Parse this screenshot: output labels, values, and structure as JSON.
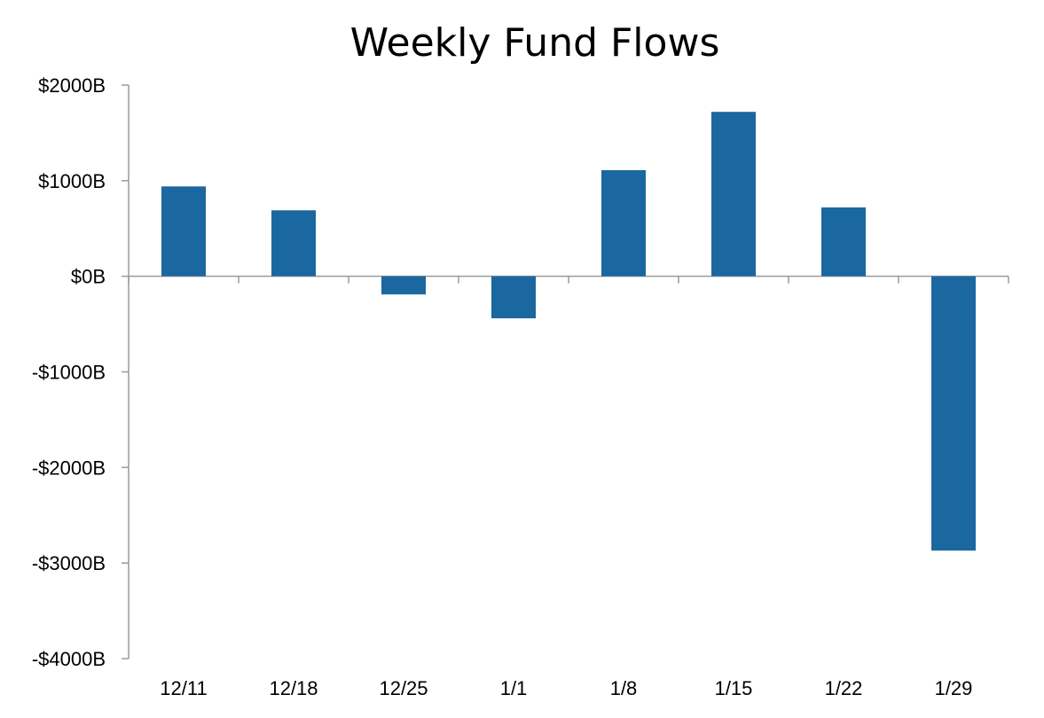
{
  "chart_data": {
    "type": "bar",
    "title": "Weekly Fund Flows",
    "xlabel": "",
    "ylabel": "",
    "categories": [
      "12/11",
      "12/18",
      "12/25",
      "1/1",
      "1/8",
      "1/15",
      "1/22",
      "1/29"
    ],
    "values": [
      940,
      690,
      -190,
      -440,
      1110,
      1720,
      720,
      -2870
    ],
    "ylim": [
      -4000,
      2000
    ],
    "yticks": [
      2000,
      1000,
      0,
      -1000,
      -2000,
      -3000,
      -4000
    ],
    "ytick_labels": [
      "$2000B",
      "$1000B",
      "$0B",
      "-$1000B",
      "-$2000B",
      "-$3000B",
      "-$4000B"
    ],
    "grid": false,
    "legend": "none",
    "colors": {
      "bar": "#1b67a0",
      "axis": "#9a9a9a",
      "text": "#000000"
    }
  }
}
